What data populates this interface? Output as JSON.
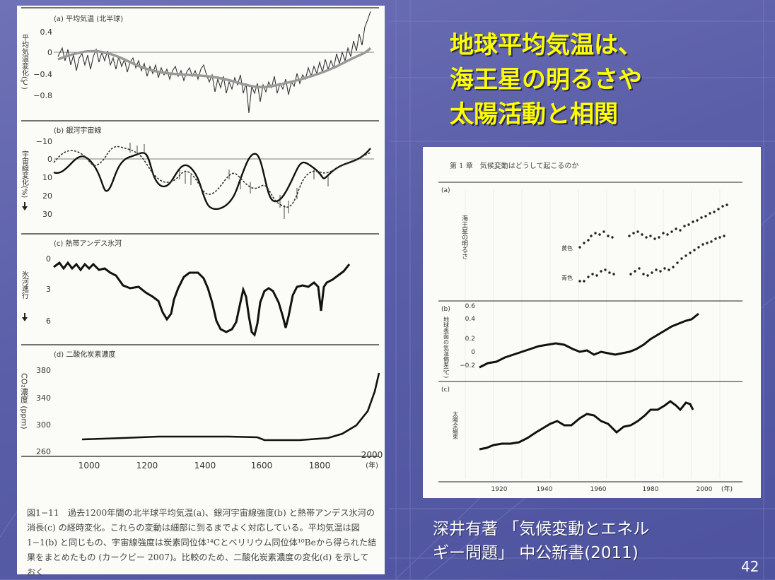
{
  "slide": {
    "title_lines": [
      "地球平均気温は、",
      "海王星の明るさや",
      "太陽活動と相関"
    ],
    "citation_lines": [
      "深井有著 「気候変動とエネル",
      "ギー問題」 中公新書(2011)"
    ],
    "page_number": "42",
    "colors": {
      "title": "#ffff00",
      "background": "#5a5ea8"
    }
  },
  "left_figure": {
    "panels": {
      "a": {
        "label": "(a) 平均気温 (北半球)",
        "ylabel": "平均気温変化(℃)",
        "ticks": [
          "0.4",
          "0",
          "−0.4",
          "−0.8"
        ]
      },
      "b": {
        "label": "(b) 銀河宇宙線",
        "ylabel": "宇宙線変化(%)",
        "ticks": [
          "−10",
          "0",
          "10",
          "20",
          "30"
        ]
      },
      "c": {
        "label": "(c) 熱帯アンデス氷河",
        "ylabel": "氷河進行",
        "ticks": [
          "0",
          "3",
          "6"
        ]
      },
      "d": {
        "label": "(d) 二酸化炭素濃度",
        "ylabel": "CO₂濃度 (ppm)",
        "ticks": [
          "380",
          "340",
          "300",
          "260"
        ]
      }
    },
    "x_ticks": [
      "1000",
      "1200",
      "1400",
      "1600",
      "1800",
      "2000"
    ],
    "x_unit": "(年)",
    "caption": "図1−11　過去1200年間の北半球平均気温(a)、銀河宇宙線強度(b) と熱帯アンデス氷河の消長(c) の経時変化。これらの変動は細部に到るまでよく対応している。平均気温は図1−1(b) と同じもの、宇宙線強度は炭素同位体¹⁴Cとベリリウム同位体¹⁰Beから得られた結果をまとめたもの (カークビー 2007)。比較のため、二酸化炭素濃度の変化(d) を示しておく"
  },
  "right_figure": {
    "header": "第 1 章　気候変動はどうして起こるのか",
    "panels": {
      "a": {
        "label": "(a)",
        "ylabel": "海王星の明るさ",
        "series": [
          "黄色",
          "青色"
        ]
      },
      "b": {
        "label": "(b)",
        "ylabel": "地球表面の気温偏差(℃)",
        "ticks": [
          "0.6",
          "0.4",
          "0.2",
          "0",
          "−0.2"
        ]
      },
      "c": {
        "label": "(c)",
        "ylabel": "太陽全磁束"
      }
    },
    "x_ticks": [
      "1920",
      "1940",
      "1960",
      "1980",
      "2000"
    ],
    "x_unit": "(年)"
  }
}
